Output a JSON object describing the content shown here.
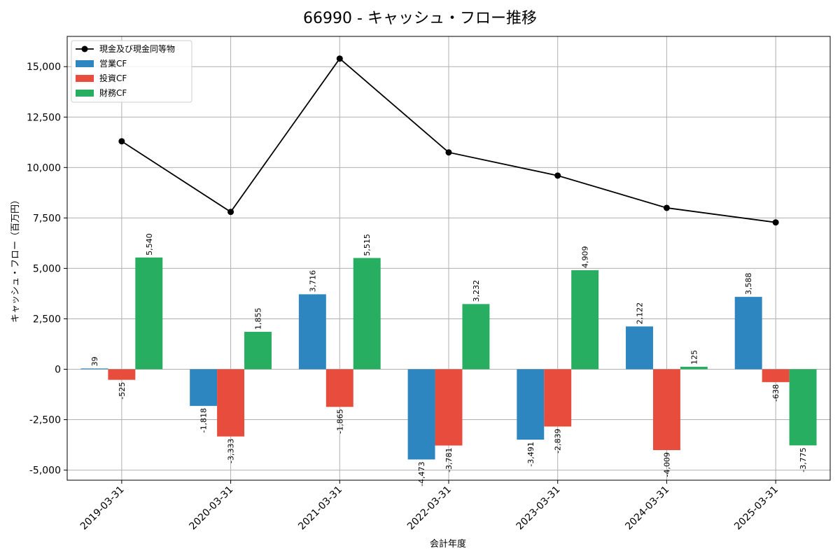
{
  "chart_data": {
    "type": "bar",
    "title": "66990 - キャッシュ・フロー推移",
    "xlabel": "会計年度",
    "ylabel": "キャッシュ・フロー（百万円）",
    "ylim": [
      -5500,
      16500
    ],
    "yticks": [
      -5000,
      -2500,
      0,
      2500,
      5000,
      7500,
      10000,
      12500,
      15000
    ],
    "ytick_labels": [
      "-5,000",
      "-2,500",
      "0",
      "2,500",
      "5,000",
      "7,500",
      "10,000",
      "12,500",
      "15,000"
    ],
    "categories": [
      "2019-03-31",
      "2020-03-31",
      "2021-03-31",
      "2022-03-31",
      "2023-03-31",
      "2024-03-31",
      "2025-03-31"
    ],
    "series": [
      {
        "name": "営業CF",
        "kind": "bar",
        "color": "#2e86c1",
        "values": [
          39,
          -1818,
          3716,
          -4473,
          -3491,
          2122,
          3588
        ],
        "labels": [
          "39",
          "-1,818",
          "3,716",
          "-4,473",
          "-3,491",
          "2,122",
          "3,588"
        ]
      },
      {
        "name": "投資CF",
        "kind": "bar",
        "color": "#e74c3c",
        "values": [
          -525,
          -3333,
          -1865,
          -3781,
          -2839,
          -4009,
          -638
        ],
        "labels": [
          "-525",
          "-3,333",
          "-1,865",
          "-3,781",
          "-2,839",
          "-4,009",
          "-638"
        ]
      },
      {
        "name": "財務CF",
        "kind": "bar",
        "color": "#27ae60",
        "values": [
          5540,
          1855,
          5515,
          3232,
          4909,
          125,
          -3775
        ],
        "labels": [
          "5,540",
          "1,855",
          "5,515",
          "3,232",
          "4,909",
          "125",
          "-3,775"
        ]
      }
    ],
    "line": {
      "name": "現金及び現金同等物",
      "color": "#000000",
      "values": [
        11300,
        7800,
        15400,
        10750,
        9600,
        8000,
        7280
      ]
    },
    "legend_position": "top-left",
    "grid": true
  }
}
